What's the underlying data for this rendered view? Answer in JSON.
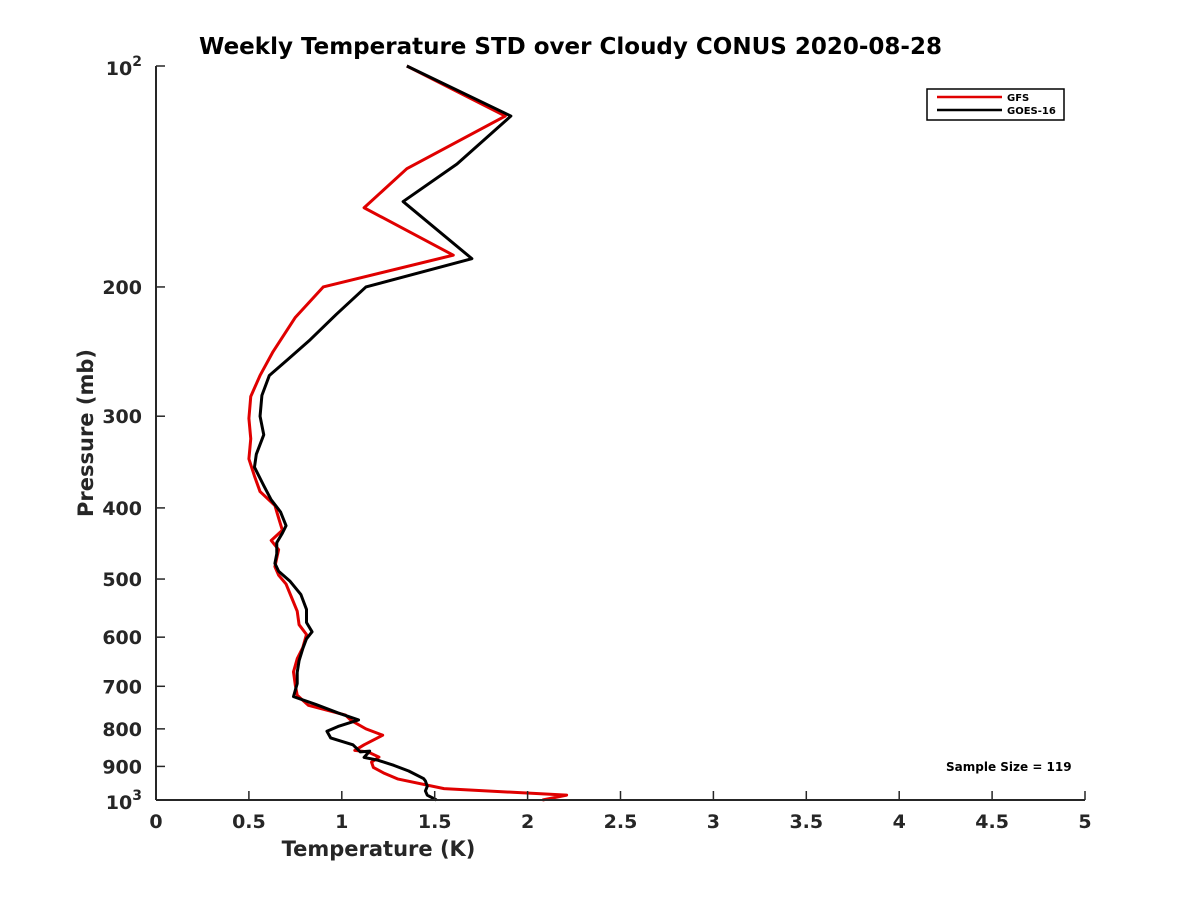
{
  "chart_data": {
    "type": "line",
    "title": "Weekly Temperature STD over Cloudy CONUS 2020-08-28",
    "xlabel": "Temperature (K)",
    "ylabel": "Pressure (mb)",
    "xlim": [
      0,
      5
    ],
    "ylim": [
      100,
      1000
    ],
    "y_scale": "log",
    "y_reversed": true,
    "grid": false,
    "legend_position": "top-right",
    "x_ticks": [
      {
        "value": 0,
        "label": "0"
      },
      {
        "value": 0.5,
        "label": "0.5"
      },
      {
        "value": 1,
        "label": "1"
      },
      {
        "value": 1.5,
        "label": "1.5"
      },
      {
        "value": 2,
        "label": "2"
      },
      {
        "value": 2.5,
        "label": "2.5"
      },
      {
        "value": 3,
        "label": "3"
      },
      {
        "value": 3.5,
        "label": "3.5"
      },
      {
        "value": 4,
        "label": "4"
      },
      {
        "value": 4.5,
        "label": "4.5"
      },
      {
        "value": 5,
        "label": "5"
      }
    ],
    "y_ticks": [
      {
        "value": 100,
        "base": "10",
        "exp": "2"
      },
      {
        "value": 200,
        "label": "200"
      },
      {
        "value": 300,
        "label": "300"
      },
      {
        "value": 400,
        "label": "400"
      },
      {
        "value": 500,
        "label": "500"
      },
      {
        "value": 600,
        "label": "600"
      },
      {
        "value": 700,
        "label": "700"
      },
      {
        "value": 800,
        "label": "800"
      },
      {
        "value": 900,
        "label": "900"
      },
      {
        "value": 1000,
        "base": "10",
        "exp": "3"
      }
    ],
    "series": [
      {
        "name": "GFS",
        "color": "#e00000",
        "points": [
          [
            1.35,
            100
          ],
          [
            1.88,
            117
          ],
          [
            1.35,
            138
          ],
          [
            1.12,
            156
          ],
          [
            1.6,
            181
          ],
          [
            0.9,
            200
          ],
          [
            0.75,
            220
          ],
          [
            0.63,
            245
          ],
          [
            0.56,
            264
          ],
          [
            0.51,
            282
          ],
          [
            0.5,
            302
          ],
          [
            0.51,
            322
          ],
          [
            0.5,
            343
          ],
          [
            0.53,
            362
          ],
          [
            0.56,
            380
          ],
          [
            0.64,
            397
          ],
          [
            0.66,
            413
          ],
          [
            0.68,
            429
          ],
          [
            0.62,
            443
          ],
          [
            0.66,
            456
          ],
          [
            0.65,
            468
          ],
          [
            0.64,
            481
          ],
          [
            0.66,
            494
          ],
          [
            0.7,
            508
          ],
          [
            0.73,
            530
          ],
          [
            0.76,
            553
          ],
          [
            0.77,
            577
          ],
          [
            0.81,
            595
          ],
          [
            0.79,
            620
          ],
          [
            0.76,
            642
          ],
          [
            0.74,
            669
          ],
          [
            0.75,
            698
          ],
          [
            0.76,
            720
          ],
          [
            0.82,
            743
          ],
          [
            1.02,
            766
          ],
          [
            1.05,
            779
          ],
          [
            1.13,
            800
          ],
          [
            1.22,
            816
          ],
          [
            1.18,
            826
          ],
          [
            1.12,
            841
          ],
          [
            1.07,
            856
          ],
          [
            1.14,
            860
          ],
          [
            1.2,
            874
          ],
          [
            1.16,
            888
          ],
          [
            1.17,
            903
          ],
          [
            1.23,
            920
          ],
          [
            1.3,
            936
          ],
          [
            1.55,
            965
          ],
          [
            2.21,
            985
          ],
          [
            2.08,
            1000
          ]
        ]
      },
      {
        "name": "GOES-16",
        "color": "#000000",
        "points": [
          [
            1.35,
            100
          ],
          [
            1.91,
            117
          ],
          [
            1.62,
            136
          ],
          [
            1.33,
            153
          ],
          [
            1.7,
            183
          ],
          [
            1.13,
            200
          ],
          [
            0.97,
            218
          ],
          [
            0.83,
            236
          ],
          [
            0.71,
            251
          ],
          [
            0.61,
            264
          ],
          [
            0.57,
            281
          ],
          [
            0.56,
            300
          ],
          [
            0.58,
            318
          ],
          [
            0.54,
            338
          ],
          [
            0.53,
            352
          ],
          [
            0.58,
            373
          ],
          [
            0.62,
            390
          ],
          [
            0.67,
            405
          ],
          [
            0.7,
            423
          ],
          [
            0.68,
            433
          ],
          [
            0.65,
            446
          ],
          [
            0.65,
            462
          ],
          [
            0.64,
            476
          ],
          [
            0.66,
            488
          ],
          [
            0.72,
            503
          ],
          [
            0.78,
            525
          ],
          [
            0.81,
            550
          ],
          [
            0.81,
            573
          ],
          [
            0.84,
            590
          ],
          [
            0.81,
            603
          ],
          [
            0.79,
            622
          ],
          [
            0.77,
            646
          ],
          [
            0.76,
            670
          ],
          [
            0.76,
            694
          ],
          [
            0.74,
            723
          ],
          [
            0.86,
            741
          ],
          [
            0.98,
            761
          ],
          [
            1.09,
            778
          ],
          [
            0.98,
            794
          ],
          [
            0.92,
            806
          ],
          [
            0.94,
            823
          ],
          [
            1.06,
            841
          ],
          [
            1.1,
            860
          ],
          [
            1.15,
            858
          ],
          [
            1.12,
            875
          ],
          [
            1.19,
            882
          ],
          [
            1.28,
            897
          ],
          [
            1.36,
            913
          ],
          [
            1.44,
            935
          ],
          [
            1.45,
            942
          ],
          [
            1.46,
            958
          ],
          [
            1.45,
            972
          ],
          [
            1.46,
            985
          ],
          [
            1.51,
            1000
          ]
        ]
      }
    ],
    "annotations": [
      {
        "text": "Sample Size = 119"
      }
    ]
  }
}
